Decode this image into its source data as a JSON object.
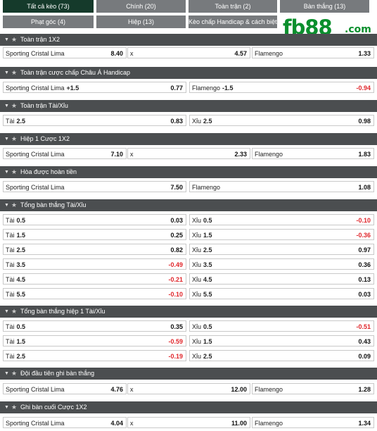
{
  "tabs": [
    {
      "label": "Tất cả kèo (73)",
      "active": true
    },
    {
      "label": "Chính (20)"
    },
    {
      "label": "Toàn trận (2)"
    },
    {
      "label": "Bàn thắng (13)"
    },
    {
      "label": "Phạt góc (4)"
    },
    {
      "label": "Hiệp (13)"
    },
    {
      "label": "Kèo chấp Handicap & cách biệt (1)"
    }
  ],
  "brand": {
    "logo_main": "fb88",
    "logo_tld": ".com",
    "accent_color": "#0a8f2d"
  },
  "colors": {
    "header_bg": "#4b4e50",
    "tab_bg": "#777a7d",
    "tab_active_bg": "#153a2b",
    "negative": "#e0262b"
  },
  "icons": {
    "collapse": "chevron-down-icon",
    "favorite": "star-icon"
  },
  "markets": [
    {
      "title": "Toàn trận 1X2",
      "rows": [
        [
          {
            "label": "Sporting Cristal Lima",
            "odd": "8.40"
          },
          {
            "label": "x",
            "odd": "4.57"
          },
          {
            "label": "Flamengo",
            "odd": "1.33"
          }
        ]
      ]
    },
    {
      "title": "Toàn trận cược chấp Châu Á Handicap",
      "rows": [
        [
          {
            "label": "Sporting Cristal Lima",
            "hc": "+1.5",
            "odd": "0.77"
          },
          {
            "label": "Flamengo",
            "hc": "-1.5",
            "odd": "-0.94"
          }
        ]
      ]
    },
    {
      "title": "Toàn trận Tài/Xỉu",
      "rows": [
        [
          {
            "label": "Tài",
            "hc": "2.5",
            "odd": "0.83"
          },
          {
            "label": "Xỉu",
            "hc": "2.5",
            "odd": "0.98"
          }
        ]
      ]
    },
    {
      "title": "Hiệp 1 Cược 1X2",
      "rows": [
        [
          {
            "label": "Sporting Cristal Lima",
            "odd": "7.10"
          },
          {
            "label": "x",
            "odd": "2.33"
          },
          {
            "label": "Flamengo",
            "odd": "1.83"
          }
        ]
      ]
    },
    {
      "title": "Hòa được hoàn tiền",
      "rows": [
        [
          {
            "label": "Sporting Cristal Lima",
            "odd": "7.50"
          },
          {
            "label": "Flamengo",
            "odd": "1.08"
          }
        ]
      ]
    },
    {
      "title": "Tổng bàn thắng Tài/Xỉu",
      "rows": [
        [
          {
            "label": "Tài",
            "hc": "0.5",
            "odd": "0.03"
          },
          {
            "label": "Xỉu",
            "hc": "0.5",
            "odd": "-0.10"
          }
        ],
        [
          {
            "label": "Tài",
            "hc": "1.5",
            "odd": "0.25"
          },
          {
            "label": "Xỉu",
            "hc": "1.5",
            "odd": "-0.36"
          }
        ],
        [
          {
            "label": "Tài",
            "hc": "2.5",
            "odd": "0.82"
          },
          {
            "label": "Xỉu",
            "hc": "2.5",
            "odd": "0.97"
          }
        ],
        [
          {
            "label": "Tài",
            "hc": "3.5",
            "odd": "-0.49"
          },
          {
            "label": "Xỉu",
            "hc": "3.5",
            "odd": "0.36"
          }
        ],
        [
          {
            "label": "Tài",
            "hc": "4.5",
            "odd": "-0.21"
          },
          {
            "label": "Xỉu",
            "hc": "4.5",
            "odd": "0.13"
          }
        ],
        [
          {
            "label": "Tài",
            "hc": "5.5",
            "odd": "-0.10"
          },
          {
            "label": "Xỉu",
            "hc": "5.5",
            "odd": "0.03"
          }
        ]
      ]
    },
    {
      "title": "Tổng bàn thắng hiệp 1 Tài/Xỉu",
      "rows": [
        [
          {
            "label": "Tài",
            "hc": "0.5",
            "odd": "0.35"
          },
          {
            "label": "Xỉu",
            "hc": "0.5",
            "odd": "-0.51"
          }
        ],
        [
          {
            "label": "Tài",
            "hc": "1.5",
            "odd": "-0.59"
          },
          {
            "label": "Xỉu",
            "hc": "1.5",
            "odd": "0.43"
          }
        ],
        [
          {
            "label": "Tài",
            "hc": "2.5",
            "odd": "-0.19"
          },
          {
            "label": "Xỉu",
            "hc": "2.5",
            "odd": "0.09"
          }
        ]
      ]
    },
    {
      "title": "Đội đầu tiên ghi bàn thắng",
      "rows": [
        [
          {
            "label": "Sporting Cristal Lima",
            "odd": "4.76"
          },
          {
            "label": "x",
            "odd": "12.00"
          },
          {
            "label": "Flamengo",
            "odd": "1.28"
          }
        ]
      ]
    },
    {
      "title": "Ghi bàn cuối Cược 1X2",
      "rows": [
        [
          {
            "label": "Sporting Cristal Lima",
            "odd": "4.04"
          },
          {
            "label": "x",
            "odd": "11.00"
          },
          {
            "label": "Flamengo",
            "odd": "1.34"
          }
        ]
      ]
    }
  ]
}
